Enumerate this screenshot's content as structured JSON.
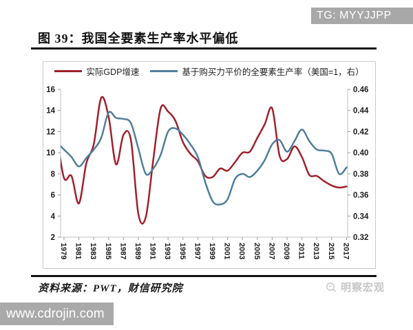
{
  "badge": {
    "label": "TG: MYYJJPP"
  },
  "title": "图 39：我国全要素生产率水平偏低",
  "legend": [
    {
      "label": "实际GDP增速",
      "color": "#9e1f2b"
    },
    {
      "label": "基于购买力平价的全要素生产率（美国=1，右）",
      "color": "#4e7d9b"
    }
  ],
  "chart_data": {
    "type": "line",
    "title": "我国全要素生产率水平偏低",
    "x": [
      1978,
      1979,
      1980,
      1981,
      1982,
      1983,
      1984,
      1985,
      1986,
      1987,
      1988,
      1989,
      1990,
      1991,
      1992,
      1993,
      1994,
      1995,
      1996,
      1997,
      1998,
      1999,
      2000,
      2001,
      2002,
      2003,
      2004,
      2005,
      2006,
      2007,
      2008,
      2009,
      2010,
      2011,
      2012,
      2013,
      2014,
      2015,
      2016,
      2017
    ],
    "series": [
      {
        "name": "实际GDP增速",
        "axis": "left",
        "color": "#9e1f2b",
        "values": [
          11.7,
          7.6,
          7.8,
          5.2,
          9.0,
          10.8,
          15.2,
          13.4,
          8.9,
          11.7,
          11.2,
          4.2,
          3.9,
          9.3,
          14.2,
          13.9,
          13.0,
          11.0,
          9.9,
          9.2,
          7.8,
          7.7,
          8.5,
          8.3,
          9.1,
          10.0,
          10.1,
          11.4,
          12.7,
          14.2,
          9.7,
          9.4,
          10.6,
          9.6,
          7.9,
          7.8,
          7.3,
          6.9,
          6.7,
          6.8
        ]
      },
      {
        "name": "基于购买力平价的全要素生产率（美国=1，右）",
        "axis": "right",
        "color": "#4e7d9b",
        "values": [
          0.41,
          0.403,
          0.396,
          0.387,
          0.395,
          0.403,
          0.414,
          0.438,
          0.433,
          0.432,
          0.428,
          0.404,
          0.38,
          0.385,
          0.398,
          0.42,
          0.423,
          0.417,
          0.408,
          0.396,
          0.372,
          0.354,
          0.351,
          0.356,
          0.375,
          0.38,
          0.377,
          0.383,
          0.393,
          0.408,
          0.412,
          0.401,
          0.411,
          0.422,
          0.411,
          0.403,
          0.402,
          0.399,
          0.38,
          0.386
        ]
      }
    ],
    "left_axis": {
      "ticks": [
        "16",
        "14",
        "12",
        "10",
        "8",
        "6",
        "4",
        "2"
      ],
      "range": [
        2,
        16
      ]
    },
    "right_axis": {
      "ticks": [
        "0.46",
        "0.44",
        "0.42",
        "0.40",
        "0.38",
        "0.36",
        "0.34",
        "0.32"
      ],
      "range": [
        0.32,
        0.46
      ]
    },
    "x_ticks": [
      "1979",
      "1981",
      "1983",
      "1985",
      "1987",
      "1989",
      "1991",
      "1993",
      "1995",
      "1997",
      "1999",
      "2001",
      "2003",
      "2005",
      "2007",
      "2009",
      "2011",
      "2013",
      "2015",
      "2017"
    ],
    "grid": false,
    "legend_position": "top",
    "smoothed": true
  },
  "source": "资料来源：PWT，财信研究院",
  "watermark": {
    "label": "明察宏观"
  },
  "footer_bar": {
    "label": "www.cdrojin.com"
  }
}
